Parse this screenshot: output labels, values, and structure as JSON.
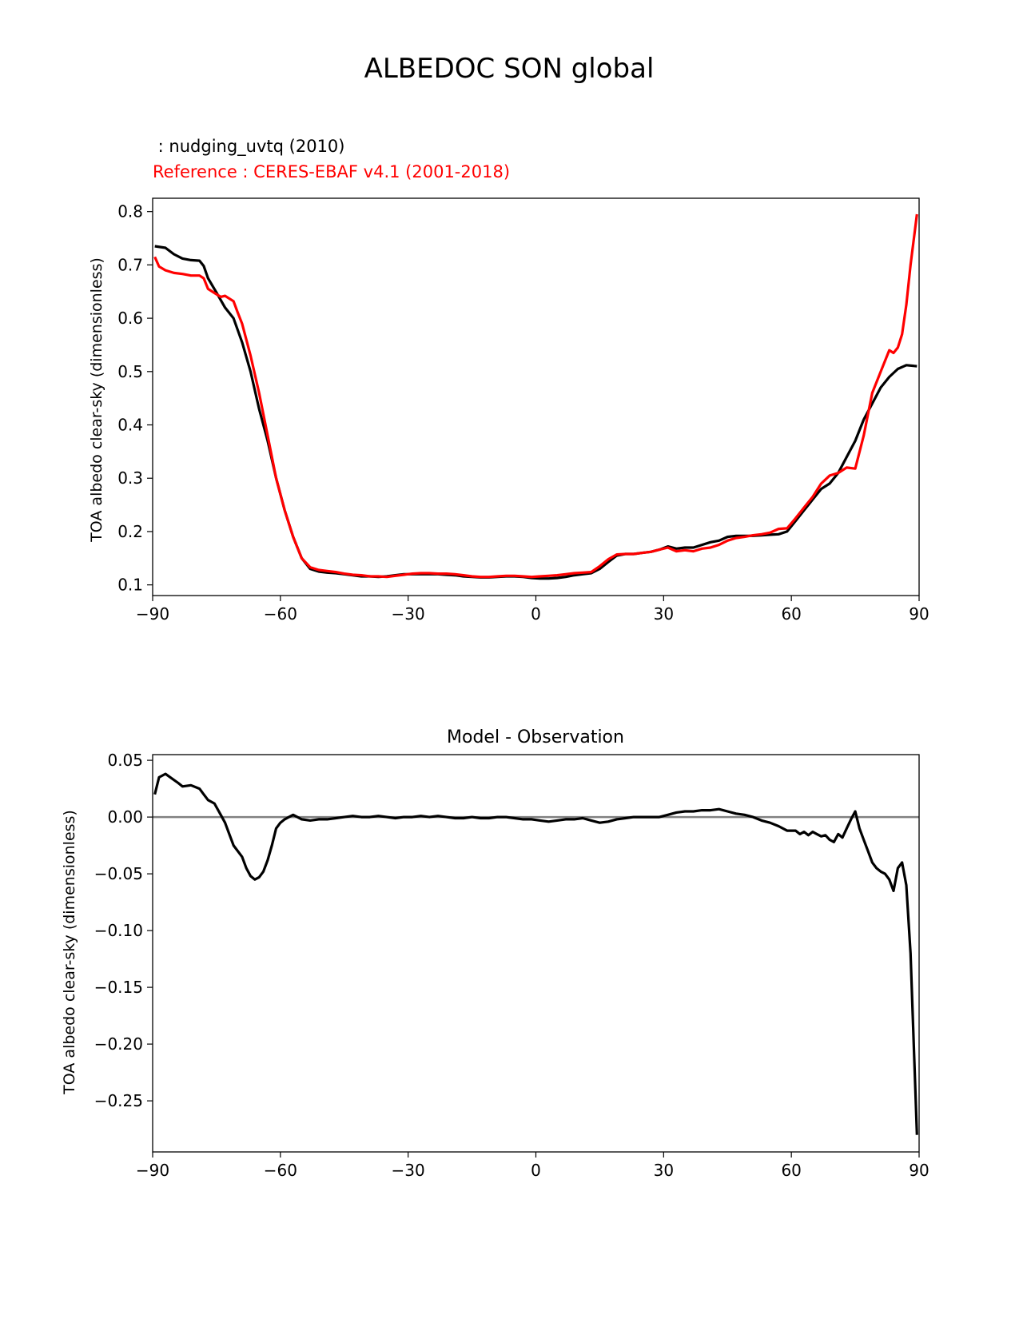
{
  "figure": {
    "title": "ALBEDOC SON global",
    "colors": {
      "model": "#000000",
      "reference": "#ff0000",
      "zero_line": "#808080"
    }
  },
  "chart_data": [
    {
      "type": "line",
      "subtitle_model": " : nudging_uvtq (2010)",
      "subtitle_reference": "Reference : CERES-EBAF v4.1 (2001-2018)",
      "xlabel": "",
      "ylabel": "TOA albedo clear-sky (dimensionless)",
      "xlim": [
        -90,
        90
      ],
      "ylim": [
        0.08,
        0.825
      ],
      "xticks": [
        -90,
        -60,
        -30,
        0,
        30,
        60,
        90
      ],
      "xtick_labels": [
        "−90",
        "−60",
        "−30",
        "0",
        "30",
        "60",
        "90"
      ],
      "yticks": [
        0.1,
        0.2,
        0.3,
        0.4,
        0.5,
        0.6,
        0.7,
        0.8
      ],
      "ytick_labels": [
        "0.1",
        "0.2",
        "0.3",
        "0.4",
        "0.5",
        "0.6",
        "0.7",
        "0.8"
      ],
      "grid": false,
      "series": [
        {
          "color": "#000000",
          "x": [
            -89.5,
            -87,
            -85,
            -83,
            -81,
            -79,
            -78,
            -77,
            -75,
            -73,
            -71,
            -69,
            -67,
            -65,
            -63,
            -61,
            -59,
            -57,
            -55,
            -53,
            -51,
            -49,
            -47,
            -45,
            -43,
            -41,
            -39,
            -37,
            -35,
            -33,
            -31,
            -29,
            -27,
            -25,
            -23,
            -21,
            -19,
            -17,
            -15,
            -13,
            -11,
            -9,
            -7,
            -5,
            -3,
            -1,
            1,
            3,
            5,
            7,
            9,
            11,
            13,
            15,
            17,
            19,
            21,
            23,
            25,
            27,
            29,
            31,
            33,
            35,
            37,
            39,
            41,
            43,
            45,
            47,
            49,
            51,
            53,
            55,
            57,
            59,
            61,
            63,
            65,
            67,
            69,
            71,
            73,
            75,
            77,
            79,
            81,
            83,
            85,
            87,
            89.5
          ],
          "y": [
            0.735,
            0.732,
            0.72,
            0.712,
            0.709,
            0.708,
            0.698,
            0.675,
            0.648,
            0.62,
            0.6,
            0.555,
            0.5,
            0.43,
            0.37,
            0.3,
            0.24,
            0.19,
            0.15,
            0.13,
            0.125,
            0.123,
            0.122,
            0.12,
            0.118,
            0.116,
            0.116,
            0.115,
            0.116,
            0.118,
            0.12,
            0.12,
            0.12,
            0.12,
            0.12,
            0.119,
            0.118,
            0.116,
            0.115,
            0.114,
            0.114,
            0.115,
            0.116,
            0.116,
            0.115,
            0.113,
            0.112,
            0.112,
            0.113,
            0.115,
            0.118,
            0.12,
            0.122,
            0.13,
            0.143,
            0.155,
            0.158,
            0.158,
            0.16,
            0.162,
            0.166,
            0.172,
            0.168,
            0.17,
            0.17,
            0.175,
            0.18,
            0.183,
            0.19,
            0.192,
            0.192,
            0.192,
            0.193,
            0.194,
            0.195,
            0.2,
            0.22,
            0.24,
            0.26,
            0.28,
            0.29,
            0.31,
            0.34,
            0.37,
            0.41,
            0.44,
            0.47,
            0.49,
            0.505,
            0.512,
            0.51
          ]
        },
        {
          "color": "#ff0000",
          "x": [
            -89.5,
            -88.5,
            -87,
            -85,
            -83,
            -81,
            -79,
            -78,
            -77,
            -75,
            -74,
            -73,
            -71,
            -70,
            -69,
            -67,
            -65,
            -63,
            -61,
            -59,
            -57,
            -55,
            -53,
            -51,
            -49,
            -47,
            -45,
            -43,
            -41,
            -39,
            -37,
            -35,
            -33,
            -31,
            -29,
            -27,
            -25,
            -23,
            -21,
            -19,
            -17,
            -15,
            -13,
            -11,
            -9,
            -7,
            -5,
            -3,
            -1,
            1,
            3,
            5,
            7,
            9,
            11,
            13,
            15,
            17,
            19,
            21,
            23,
            25,
            27,
            29,
            31,
            33,
            35,
            37,
            39,
            41,
            43,
            45,
            47,
            49,
            51,
            53,
            55,
            57,
            59,
            61,
            63,
            65,
            67,
            69,
            71,
            73,
            75,
            77,
            79,
            81,
            83,
            84,
            85,
            86,
            87,
            88,
            89.5
          ],
          "y": [
            0.715,
            0.697,
            0.69,
            0.685,
            0.683,
            0.68,
            0.68,
            0.675,
            0.655,
            0.645,
            0.64,
            0.642,
            0.632,
            0.61,
            0.59,
            0.53,
            0.46,
            0.38,
            0.3,
            0.24,
            0.19,
            0.15,
            0.133,
            0.128,
            0.126,
            0.124,
            0.121,
            0.119,
            0.118,
            0.116,
            0.116,
            0.115,
            0.117,
            0.119,
            0.121,
            0.122,
            0.122,
            0.121,
            0.121,
            0.12,
            0.118,
            0.116,
            0.115,
            0.115,
            0.116,
            0.117,
            0.117,
            0.116,
            0.115,
            0.116,
            0.117,
            0.118,
            0.12,
            0.122,
            0.123,
            0.124,
            0.135,
            0.148,
            0.157,
            0.158,
            0.158,
            0.16,
            0.162,
            0.166,
            0.17,
            0.163,
            0.165,
            0.163,
            0.168,
            0.17,
            0.175,
            0.183,
            0.188,
            0.19,
            0.193,
            0.195,
            0.198,
            0.205,
            0.206,
            0.225,
            0.245,
            0.265,
            0.29,
            0.305,
            0.31,
            0.32,
            0.318,
            0.38,
            0.46,
            0.5,
            0.54,
            0.535,
            0.545,
            0.57,
            0.625,
            0.7,
            0.795
          ]
        }
      ]
    },
    {
      "type": "line",
      "title": "Model - Observation",
      "xlabel": "",
      "ylabel": "TOA albedo clear-sky (dimensionless)",
      "xlim": [
        -90,
        90
      ],
      "ylim": [
        -0.295,
        0.055
      ],
      "xticks": [
        -90,
        -60,
        -30,
        0,
        30,
        60,
        90
      ],
      "xtick_labels": [
        "−90",
        "−60",
        "−30",
        "0",
        "30",
        "60",
        "90"
      ],
      "yticks": [
        0.05,
        0.0,
        -0.05,
        -0.1,
        -0.15,
        -0.2,
        -0.25
      ],
      "ytick_labels": [
        "0.05",
        "0.00",
        "−0.05",
        "−0.10",
        "−0.15",
        "−0.20",
        "−0.25"
      ],
      "grid": false,
      "reference_line_y": 0.0,
      "series": [
        {
          "color": "#000000",
          "x": [
            -89.5,
            -88.5,
            -87,
            -85.5,
            -84,
            -83,
            -81,
            -79,
            -78,
            -77,
            -75.5,
            -74,
            -73,
            -72,
            -71,
            -69,
            -68,
            -67,
            -66,
            -65,
            -64,
            -63,
            -62,
            -61,
            -60,
            -59,
            -58,
            -57,
            -55,
            -53,
            -51,
            -49,
            -47,
            -45,
            -43,
            -41,
            -39,
            -37,
            -35,
            -33,
            -31,
            -29,
            -27,
            -25,
            -23,
            -21,
            -19,
            -17,
            -15,
            -13,
            -11,
            -9,
            -7,
            -5,
            -3,
            -1,
            1,
            3,
            5,
            7,
            9,
            11,
            13,
            15,
            17,
            19,
            21,
            23,
            25,
            27,
            29,
            31,
            33,
            35,
            37,
            39,
            41,
            43,
            45,
            47,
            49,
            51,
            53,
            55,
            57,
            59,
            61,
            62,
            63,
            64,
            65,
            66,
            67,
            68,
            69,
            70,
            71,
            72,
            73,
            74,
            75,
            76,
            77,
            78,
            79,
            80,
            81,
            82,
            83,
            84,
            85,
            86,
            87,
            88,
            89.5
          ],
          "y": [
            0.02,
            0.035,
            0.038,
            0.034,
            0.03,
            0.027,
            0.028,
            0.025,
            0.02,
            0.015,
            0.012,
            0.002,
            -0.005,
            -0.015,
            -0.025,
            -0.035,
            -0.045,
            -0.052,
            -0.055,
            -0.053,
            -0.048,
            -0.038,
            -0.025,
            -0.01,
            -0.005,
            -0.002,
            0.0,
            0.002,
            -0.002,
            -0.003,
            -0.002,
            -0.002,
            -0.001,
            0.0,
            0.001,
            0.0,
            0.0,
            0.001,
            0.0,
            -0.001,
            0.0,
            0.0,
            0.001,
            0.0,
            0.001,
            0.0,
            -0.001,
            -0.001,
            0.0,
            -0.001,
            -0.001,
            0.0,
            0.0,
            -0.001,
            -0.002,
            -0.002,
            -0.003,
            -0.004,
            -0.003,
            -0.002,
            -0.002,
            -0.001,
            -0.003,
            -0.005,
            -0.004,
            -0.002,
            -0.001,
            0.0,
            0.0,
            0.0,
            0.0,
            0.002,
            0.004,
            0.005,
            0.005,
            0.006,
            0.006,
            0.007,
            0.005,
            0.003,
            0.002,
            0.0,
            -0.003,
            -0.005,
            -0.008,
            -0.012,
            -0.012,
            -0.015,
            -0.013,
            -0.016,
            -0.013,
            -0.015,
            -0.017,
            -0.016,
            -0.02,
            -0.022,
            -0.015,
            -0.018,
            -0.01,
            -0.002,
            0.005,
            -0.01,
            -0.02,
            -0.03,
            -0.04,
            -0.045,
            -0.048,
            -0.05,
            -0.055,
            -0.065,
            -0.045,
            -0.04,
            -0.06,
            -0.12,
            -0.28
          ]
        }
      ]
    }
  ]
}
